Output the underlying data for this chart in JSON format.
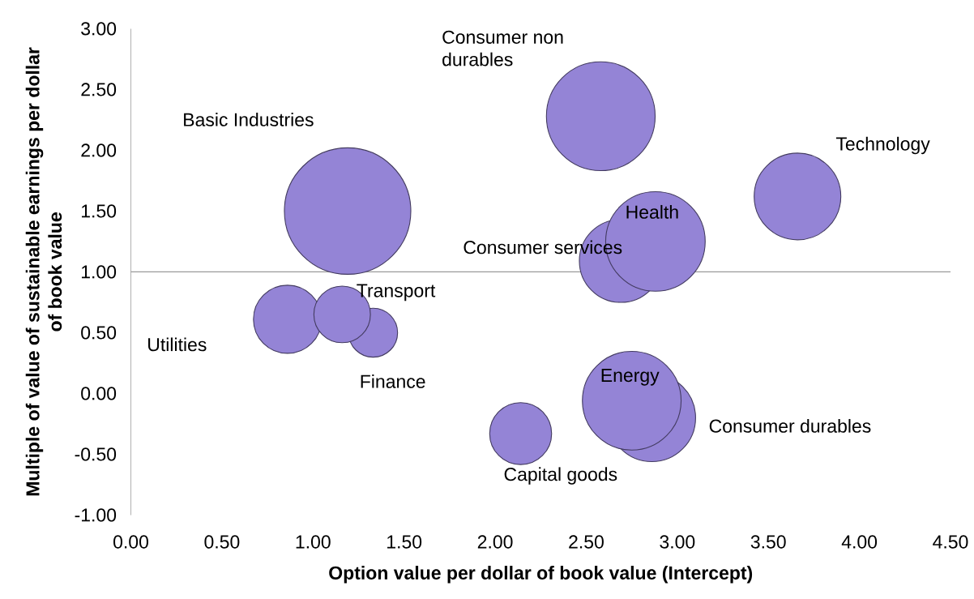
{
  "chart_data": {
    "type": "bubble",
    "xlabel": "Option value per dollar of book value (Intercept)",
    "ylabel": "Multiple of value of sustainable earnings per dollar of book value",
    "xlim": [
      0,
      4.5
    ],
    "ylim": [
      -1,
      3
    ],
    "xticks": [
      {
        "value": 0,
        "label": "0.00"
      },
      {
        "value": 0.5,
        "label": "0.50"
      },
      {
        "value": 1,
        "label": "1.00"
      },
      {
        "value": 1.5,
        "label": "1.50"
      },
      {
        "value": 2,
        "label": "2.00"
      },
      {
        "value": 2.5,
        "label": "2.50"
      },
      {
        "value": 3,
        "label": "3.00"
      },
      {
        "value": 3.5,
        "label": "3.50"
      },
      {
        "value": 4,
        "label": "4.00"
      },
      {
        "value": 4.5,
        "label": "4.50"
      }
    ],
    "yticks": [
      {
        "value": -1,
        "label": "-1.00"
      },
      {
        "value": -0.5,
        "label": "-0.50"
      },
      {
        "value": 0,
        "label": "0.00"
      },
      {
        "value": 0.5,
        "label": "0.50"
      },
      {
        "value": 1,
        "label": "1.00"
      },
      {
        "value": 1.5,
        "label": "1.50"
      },
      {
        "value": 2,
        "label": "2.00"
      },
      {
        "value": 2.5,
        "label": "2.50"
      },
      {
        "value": 3,
        "label": "3.00"
      }
    ],
    "ref_lines": [
      {
        "axis": "y",
        "value": 1,
        "color": "#9a9a9a"
      }
    ],
    "series": [
      {
        "name": "Basic Industries",
        "color": "#9484d6",
        "x": [
          1.19
        ],
        "values": [
          1.5
        ],
        "sizes": [
          1.0
        ]
      },
      {
        "name": "Consumer non durables",
        "color": "#9484d6",
        "x": [
          2.58
        ],
        "values": [
          2.28
        ],
        "sizes": [
          0.74
        ]
      },
      {
        "name": "Technology",
        "color": "#9484d6",
        "x": [
          3.66
        ],
        "values": [
          1.62
        ],
        "sizes": [
          0.47
        ]
      },
      {
        "name": "Consumer services",
        "color": "#9484d6",
        "x": [
          2.69
        ],
        "values": [
          1.09
        ],
        "sizes": [
          0.43
        ]
      },
      {
        "name": "Health",
        "color": "#9484d6",
        "x": [
          2.88
        ],
        "values": [
          1.25
        ],
        "sizes": [
          0.62
        ]
      },
      {
        "name": "Consumer durables",
        "color": "#9484d6",
        "x": [
          2.86
        ],
        "values": [
          -0.2
        ],
        "sizes": [
          0.48
        ]
      },
      {
        "name": "Energy",
        "color": "#9484d6",
        "x": [
          2.75
        ],
        "values": [
          -0.06
        ],
        "sizes": [
          0.61
        ]
      },
      {
        "name": "Utilities",
        "color": "#9484d6",
        "x": [
          0.86
        ],
        "values": [
          0.61
        ],
        "sizes": [
          0.29
        ]
      },
      {
        "name": "Finance",
        "color": "#9484d6",
        "x": [
          1.33
        ],
        "values": [
          0.5
        ],
        "sizes": [
          0.15
        ]
      },
      {
        "name": "Transport",
        "color": "#9484d6",
        "x": [
          1.16
        ],
        "values": [
          0.65
        ],
        "sizes": [
          0.2
        ]
      },
      {
        "name": "Capital goods",
        "color": "#9484d6",
        "x": [
          2.14
        ],
        "values": [
          -0.33
        ],
        "sizes": [
          0.24
        ]
      }
    ]
  }
}
